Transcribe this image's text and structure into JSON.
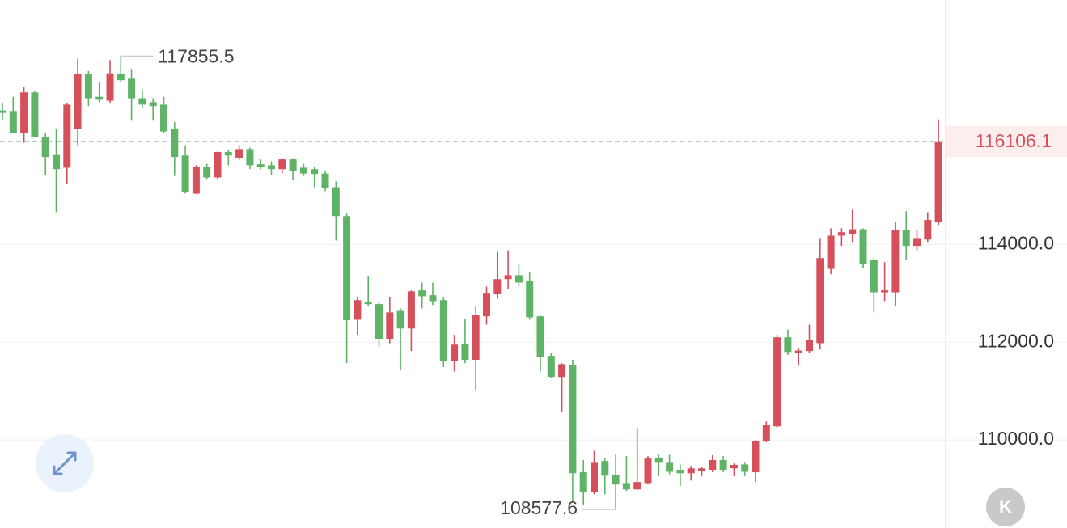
{
  "chart_data": {
    "type": "candlestick",
    "up_color": "#d6505c",
    "down_color": "#5fb366",
    "ylim": [
      108200,
      119000
    ],
    "yticks": [
      {
        "value": 110000,
        "label": "110000.0"
      },
      {
        "value": 112000,
        "label": "112000.0"
      },
      {
        "value": 114000,
        "label": "114000.0"
      }
    ],
    "grid": true,
    "corner_button": "K",
    "open": [
      116740,
      116730,
      116280,
      117110,
      116200,
      115830,
      115570,
      116360,
      117490,
      117020,
      116940,
      117490,
      117390,
      116990,
      116910,
      116860,
      116360,
      115820,
      115040,
      115590,
      115370,
      115890,
      115770,
      115950,
      115640,
      115620,
      115540,
      115740,
      115570,
      115540,
      115450,
      115170,
      114580,
      112460,
      112830,
      112780,
      112070,
      112640,
      112280,
      113060,
      112960,
      112860,
      111620,
      111970,
      111640,
      112530,
      112990,
      113290,
      113370,
      113260,
      112530,
      111720,
      111290,
      111540,
      109340,
      108930,
      109570,
      109290,
      109120,
      108990,
      109120,
      109640,
      109550,
      109390,
      109320,
      109370,
      109390,
      109590,
      109420,
      109500,
      109340,
      109980,
      110280,
      112100,
      111780,
      111820,
      111980,
      113500,
      114180,
      114210,
      114310,
      113690,
      113020,
      113020,
      114300,
      113970,
      114100,
      114450
    ],
    "high": [
      116890,
      117020,
      117220,
      117140,
      116280,
      116360,
      116890,
      117800,
      117550,
      117310,
      117770,
      117855.5,
      117590,
      117160,
      116990,
      117020,
      116500,
      116030,
      115620,
      115650,
      115900,
      115930,
      116030,
      115980,
      115740,
      115700,
      115750,
      115750,
      115650,
      115590,
      115500,
      115290,
      114630,
      112930,
      113360,
      112830,
      112930,
      112690,
      113060,
      113220,
      113220,
      112930,
      112150,
      112480,
      112730,
      113140,
      113850,
      113880,
      113590,
      113440,
      112560,
      111780,
      111570,
      111640,
      109590,
      109780,
      109620,
      109700,
      109670,
      110250,
      109670,
      109700,
      109700,
      109500,
      109470,
      109450,
      109690,
      109670,
      109520,
      109550,
      110000,
      110380,
      112150,
      112260,
      111870,
      112360,
      114130,
      114330,
      114330,
      114710,
      114330,
      113720,
      113640,
      114460,
      114680,
      114300,
      114660,
      116560
    ],
    "low": [
      116530,
      116270,
      116080,
      116190,
      115420,
      114660,
      115240,
      116030,
      116830,
      116910,
      116890,
      117320,
      116530,
      116780,
      116530,
      116280,
      115400,
      115040,
      115030,
      115340,
      115340,
      115620,
      115730,
      115540,
      115540,
      115420,
      115450,
      115320,
      115400,
      115170,
      115090,
      114080,
      111570,
      112150,
      112730,
      111900,
      111980,
      111440,
      111820,
      112690,
      112760,
      111490,
      111400,
      111570,
      111020,
      112360,
      112890,
      113090,
      113140,
      112460,
      111400,
      111270,
      110580,
      108760,
      108680,
      108890,
      108890,
      108577.6,
      108960,
      108980,
      109090,
      109260,
      109300,
      109060,
      109170,
      109260,
      109340,
      109340,
      109260,
      109260,
      109140,
      109950,
      110250,
      111740,
      111520,
      111780,
      111850,
      113390,
      113970,
      114050,
      113520,
      112610,
      112840,
      112730,
      113690,
      113880,
      114050,
      114400
    ],
    "close": [
      116690,
      116280,
      117110,
      116200,
      115790,
      115540,
      116860,
      117490,
      116990,
      116960,
      117500,
      117360,
      116990,
      116860,
      116830,
      116310,
      115790,
      115070,
      115590,
      115370,
      115890,
      115820,
      115950,
      115620,
      115590,
      115540,
      115740,
      115500,
      115450,
      115440,
      115160,
      114580,
      112450,
      112860,
      112780,
      112070,
      112610,
      112280,
      113040,
      112940,
      112840,
      111620,
      111950,
      111640,
      112550,
      113010,
      113290,
      113370,
      113220,
      112510,
      111700,
      111290,
      111550,
      109320,
      108930,
      109550,
      109270,
      109090,
      108990,
      109140,
      109620,
      109550,
      109350,
      109320,
      109420,
      109420,
      109590,
      109390,
      109490,
      109350,
      109980,
      110300,
      112100,
      111800,
      111830,
      112050,
      113720,
      114180,
      114250,
      114310,
      113590,
      113020,
      113060,
      114300,
      113970,
      114130,
      114500,
      116106.1
    ]
  }
}
